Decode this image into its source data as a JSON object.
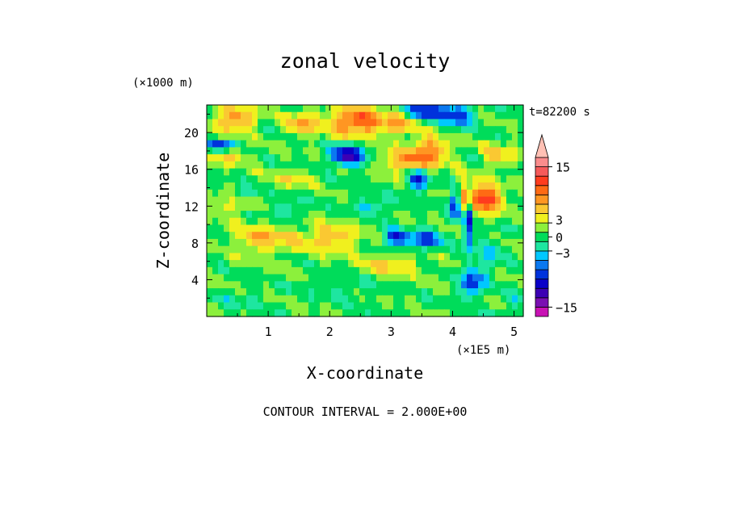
{
  "chart_data": {
    "type": "heatmap",
    "title": "zonal velocity",
    "xlabel": "X-coordinate",
    "ylabel": "Z-coordinate",
    "x_unit": "(×1E5 m)",
    "z_unit": "(×1000 m)",
    "time_label": "t=82200 s",
    "footer": "CONTOUR INTERVAL = 2.000E+00",
    "xlim": [
      0,
      5.15
    ],
    "ylim": [
      0,
      23
    ],
    "x_ticks": [
      "1",
      "2",
      "3",
      "4",
      "5"
    ],
    "y_ticks": [
      "4",
      "8",
      "12",
      "16",
      "20"
    ],
    "colorbar": {
      "labels": [
        "15",
        "3",
        "0",
        "−3",
        "−15"
      ],
      "levels": [
        -17,
        -15,
        -13,
        -11,
        -9,
        -7,
        -5,
        -3,
        -1,
        1,
        3,
        5,
        7,
        9,
        11,
        13,
        15,
        17
      ],
      "colors": [
        "#ff1ab4",
        "#c812b4",
        "#7a0fb2",
        "#3c00b4",
        "#0a00c8",
        "#0032dc",
        "#0a78f0",
        "#00c8ff",
        "#1ee6a0",
        "#00dc5a",
        "#8cf03c",
        "#f0f01e",
        "#fac832",
        "#ff9622",
        "#ff6a14",
        "#ff3c1e",
        "#f55a5a",
        "#fa8c8c",
        "#ffc0b4"
      ]
    },
    "grid": false
  },
  "field": {
    "nx": 56,
    "nz": 30,
    "base": 0.6,
    "features": [
      {
        "x": 0.45,
        "z": 21.5,
        "sx": 0.35,
        "sz": 1.4,
        "a": 8
      },
      {
        "x": 2.45,
        "z": 21.2,
        "sx": 0.45,
        "sz": 1.5,
        "a": 11
      },
      {
        "x": 1.55,
        "z": 21.0,
        "sx": 0.3,
        "sz": 1.2,
        "a": 6
      },
      {
        "x": 3.15,
        "z": 20.8,
        "sx": 0.25,
        "sz": 1.2,
        "a": 6
      },
      {
        "x": 3.3,
        "z": 16.8,
        "sx": 0.45,
        "sz": 1.3,
        "a": 8
      },
      {
        "x": 3.65,
        "z": 18.3,
        "sx": 0.3,
        "sz": 1.4,
        "a": 7
      },
      {
        "x": 4.2,
        "z": 13.3,
        "sx": 0.18,
        "sz": 1.8,
        "a": 9
      },
      {
        "x": 4.55,
        "z": 12.8,
        "sx": 0.25,
        "sz": 1.5,
        "a": 12
      },
      {
        "x": 4.75,
        "z": 17.5,
        "sx": 0.25,
        "sz": 1.2,
        "a": 5
      },
      {
        "x": 0.35,
        "z": 17.5,
        "sx": 0.35,
        "sz": 1.0,
        "a": 5
      },
      {
        "x": 0.9,
        "z": 8.5,
        "sx": 0.5,
        "sz": 1.6,
        "a": 6
      },
      {
        "x": 2.0,
        "z": 8.5,
        "sx": 0.5,
        "sz": 1.5,
        "a": 6
      },
      {
        "x": 3.0,
        "z": 5.6,
        "sx": 0.45,
        "sz": 1.2,
        "a": 5
      },
      {
        "x": 0.35,
        "z": 12.0,
        "sx": 0.3,
        "sz": 1.0,
        "a": 4
      },
      {
        "x": 1.4,
        "z": 15.0,
        "sx": 0.35,
        "sz": 0.9,
        "a": 4
      },
      {
        "x": 2.3,
        "z": 17.5,
        "sx": 0.28,
        "sz": 1.1,
        "a": -13
      },
      {
        "x": 0.25,
        "z": 18.6,
        "sx": 0.22,
        "sz": 0.7,
        "a": -10
      },
      {
        "x": 3.6,
        "z": 22.4,
        "sx": 0.35,
        "sz": 1.0,
        "a": -10
      },
      {
        "x": 4.1,
        "z": 21.8,
        "sx": 0.25,
        "sz": 1.2,
        "a": -8
      },
      {
        "x": 3.45,
        "z": 15.0,
        "sx": 0.18,
        "sz": 1.2,
        "a": -10
      },
      {
        "x": 4.05,
        "z": 12.5,
        "sx": 0.08,
        "sz": 1.8,
        "a": -14
      },
      {
        "x": 4.25,
        "z": 10.5,
        "sx": 0.07,
        "sz": 3.5,
        "a": -12
      },
      {
        "x": 3.1,
        "z": 8.5,
        "sx": 0.25,
        "sz": 0.9,
        "a": -10
      },
      {
        "x": 3.6,
        "z": 8.3,
        "sx": 0.2,
        "sz": 1.0,
        "a": -9
      },
      {
        "x": 4.3,
        "z": 3.6,
        "sx": 0.18,
        "sz": 1.5,
        "a": -9
      },
      {
        "x": 2.7,
        "z": 12.0,
        "sx": 0.3,
        "sz": 0.8,
        "a": -5
      },
      {
        "x": 1.3,
        "z": 11.5,
        "sx": 0.3,
        "sz": 0.8,
        "a": -4
      },
      {
        "x": 0.6,
        "z": 13.3,
        "sx": 0.2,
        "sz": 0.6,
        "a": -4
      },
      {
        "x": 2.3,
        "z": 3.0,
        "sx": 0.6,
        "sz": 1.2,
        "a": -2
      },
      {
        "x": 0.5,
        "z": 1.8,
        "sx": 0.4,
        "sz": 1.0,
        "a": -2
      },
      {
        "x": 4.6,
        "z": 6.5,
        "sx": 0.2,
        "sz": 2.0,
        "a": -4
      },
      {
        "x": 4.95,
        "z": 1.5,
        "sx": 0.2,
        "sz": 1.0,
        "a": -3
      }
    ]
  }
}
